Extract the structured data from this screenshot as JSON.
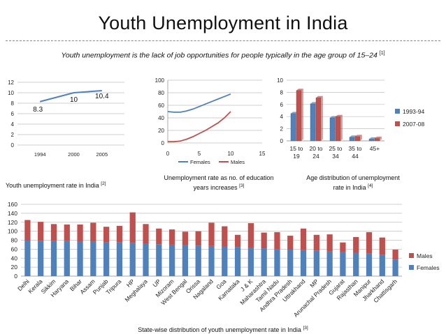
{
  "page": {
    "title": "Youth Unemployment in India",
    "subtitle": "Youth unemployment is the lack of job opportunities for people typically in the age group of 15–24",
    "subtitle_ref": "[1]"
  },
  "captions": {
    "c1": "Youth  unemployment rate in India",
    "c1_ref": "[2]",
    "c2_line1": "Unemployment rate as no. of education",
    "c2_line2": "years increases",
    "c2_ref": "[3]",
    "c3_line1": "Age distribution of unemployment",
    "c3_line2": "rate in India",
    "c3_ref": "[4]",
    "c4": "State-wise distribution of  youth unemployment rate in India",
    "c4_ref": "[3]"
  },
  "chart_data": [
    {
      "type": "line",
      "title": "Youth unemployment rate in India",
      "x": [
        1994,
        2000,
        2005
      ],
      "values": [
        8.3,
        10,
        10.4
      ],
      "data_labels": [
        "8.3",
        "10",
        "10.4"
      ],
      "xticks": [
        "1994",
        "2000",
        "2005"
      ],
      "ylim": [
        0,
        12
      ],
      "yticks": [
        "0",
        "2",
        "4",
        "6",
        "8",
        "10",
        "12"
      ],
      "series_color": "#4f81bd"
    },
    {
      "type": "line",
      "title": "Unemployment rate as no. of education years increases",
      "xlim": [
        0,
        15
      ],
      "xticks": [
        "0",
        "5",
        "10",
        "15"
      ],
      "ylim": [
        0,
        100
      ],
      "yticks": [
        "0",
        "20",
        "40",
        "60",
        "80",
        "100"
      ],
      "series": [
        {
          "name": "Females",
          "color": "#4f81bd",
          "x": [
            0,
            1,
            2,
            3,
            4,
            5,
            6,
            7,
            8,
            9,
            10
          ],
          "values": [
            50,
            49,
            49,
            51,
            54,
            58,
            62,
            66,
            70,
            74,
            78
          ]
        },
        {
          "name": "Males",
          "color": "#c0504d",
          "x": [
            0,
            1,
            2,
            3,
            4,
            5,
            6,
            7,
            8,
            9,
            10
          ],
          "values": [
            2,
            2,
            3,
            6,
            10,
            15,
            20,
            26,
            32,
            40,
            50
          ]
        }
      ]
    },
    {
      "type": "bar",
      "title": "Age distribution of unemployment rate in India",
      "categories": [
        [
          "15 to",
          "19"
        ],
        [
          "20 to",
          "24"
        ],
        [
          "25 to",
          "34"
        ],
        [
          "35 to",
          "44"
        ],
        [
          "45+",
          ""
        ]
      ],
      "ylim": [
        0,
        10
      ],
      "yticks": [
        "0",
        "2",
        "4",
        "6",
        "8",
        "10"
      ],
      "series": [
        {
          "name": "1993-94",
          "color": "#4f81bd",
          "values": [
            4.5,
            6.1,
            3.8,
            0.6,
            0.3
          ]
        },
        {
          "name": "2007-08",
          "color": "#c0504d",
          "values": [
            8.3,
            7.1,
            4.0,
            0.7,
            0.4
          ]
        }
      ]
    },
    {
      "type": "bar",
      "stacked": true,
      "title": "State-wise distribution of youth unemployment rate in India",
      "categories": [
        "Delhi",
        "Kerala",
        "Sikkim",
        "Haryana",
        "Bihar",
        "Assam",
        "Punjab",
        "Tripura",
        "HP",
        "Meghalaya",
        "UP",
        "Mizoram",
        "West Bengal",
        "Orissa",
        "Nagaland",
        "Goa",
        "Karnataka",
        "J & K",
        "Maharashtra",
        "Tamil Nadu",
        "Andhra Pradesh",
        "Uttrakhand",
        "MP",
        "Arunachal Pradesh",
        "Gujarat",
        "Rajasthan",
        "Manipur",
        "Jharkhand",
        "Chattisgarh"
      ],
      "ylim": [
        0,
        160
      ],
      "yticks": [
        "0",
        "20",
        "40",
        "60",
        "80",
        "100",
        "120",
        "140",
        "160"
      ],
      "series": [
        {
          "name": "Females",
          "color": "#4f81bd",
          "values": [
            80,
            79,
            78,
            78,
            77,
            77,
            76,
            75,
            74,
            73,
            71,
            70,
            69,
            68,
            67,
            66,
            65,
            63,
            62,
            60,
            59,
            58,
            57,
            55,
            53,
            52,
            50,
            48,
            37
          ]
        },
        {
          "name": "Males",
          "color": "#c0504d",
          "values": [
            45,
            42,
            38,
            37,
            38,
            42,
            34,
            37,
            68,
            43,
            35,
            34,
            30,
            32,
            52,
            45,
            27,
            55,
            35,
            38,
            31,
            48,
            35,
            38,
            22,
            35,
            48,
            38,
            22
          ]
        }
      ]
    }
  ]
}
